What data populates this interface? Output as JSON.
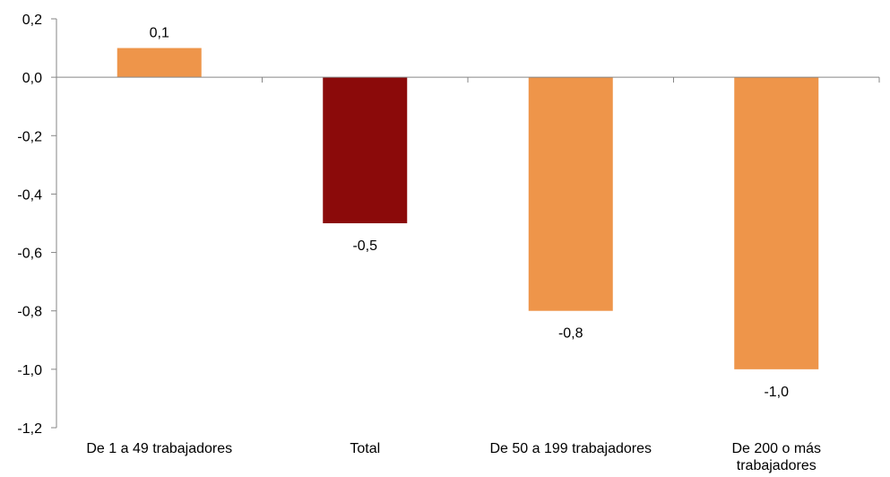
{
  "chart_data": {
    "type": "bar",
    "categories": [
      "De 1 a 49 trabajadores",
      "Total",
      "De 50 a 199 trabajadores",
      "De 200 o más trabajadores"
    ],
    "values": [
      0.1,
      -0.5,
      -0.8,
      -1.0
    ],
    "data_labels": [
      "0,1",
      "-0,5",
      "-0,8",
      "-1,0"
    ],
    "category_label_lines": [
      [
        "De 1 a 49 trabajadores"
      ],
      [
        "Total"
      ],
      [
        "De 50 a 199 trabajadores"
      ],
      [
        "De 200 o más",
        "trabajadores"
      ]
    ],
    "bar_colors": [
      "#EE954A",
      "#8B0A0A",
      "#EE954A",
      "#EE954A"
    ],
    "ylim": [
      -1.2,
      0.2
    ],
    "yticks": [
      0.2,
      0.0,
      -0.2,
      -0.4,
      -0.6,
      -0.8,
      -1.0,
      -1.2
    ],
    "ytick_labels": [
      "0,2",
      "0,0",
      "-0,2",
      "-0,4",
      "-0,6",
      "-0,8",
      "-1,0",
      "-1,2"
    ],
    "title": "",
    "xlabel": "",
    "ylabel": "",
    "grid": false,
    "legend": "none",
    "axis_color": "#868686"
  }
}
